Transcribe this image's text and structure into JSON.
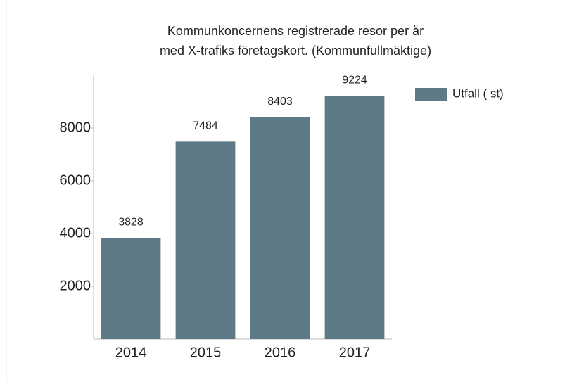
{
  "chart_data": {
    "type": "bar",
    "title": [
      "Kommunkoncernens registrerade resor per år",
      "med X-trafiks företagskort. (Kommunfullmäktige)"
    ],
    "categories": [
      "2014",
      "2015",
      "2016",
      "2017"
    ],
    "series": [
      {
        "name": "Utfall ( st)",
        "color": "#5f7a87",
        "values": [
          3828,
          7484,
          8403,
          9224
        ]
      }
    ],
    "ylim": [
      0,
      10000
    ],
    "yticks": [
      2000,
      4000,
      6000,
      8000
    ],
    "legend": "right"
  }
}
